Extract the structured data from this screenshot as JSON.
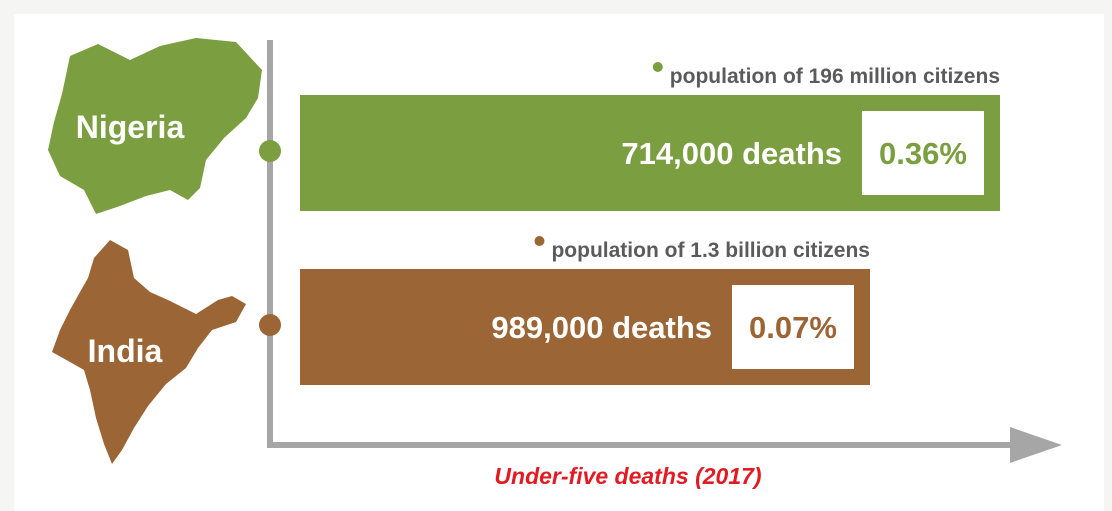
{
  "colors": {
    "nigeria": "#7a9e40",
    "india": "#9b6535",
    "axis": "#a6a6a6",
    "xlabel": "#e21b22"
  },
  "icons": [
    "nigeria-map-icon",
    "india-map-icon"
  ],
  "chart_data": {
    "type": "bar",
    "orientation": "horizontal",
    "title": "",
    "xlabel": "Under-five deaths (2017)",
    "ylabel": "",
    "categories": [
      "Nigeria",
      "India"
    ],
    "values": [
      714000,
      989000
    ],
    "value_labels": [
      "714,000 deaths",
      "989,000 deaths"
    ],
    "percent_labels": [
      "0.36%",
      "0.07%"
    ],
    "population_labels": [
      "population of 196 million citizens",
      "population of 1.3 billion citizens"
    ],
    "bar_fill_fractions": [
      0.7,
      0.57
    ]
  }
}
